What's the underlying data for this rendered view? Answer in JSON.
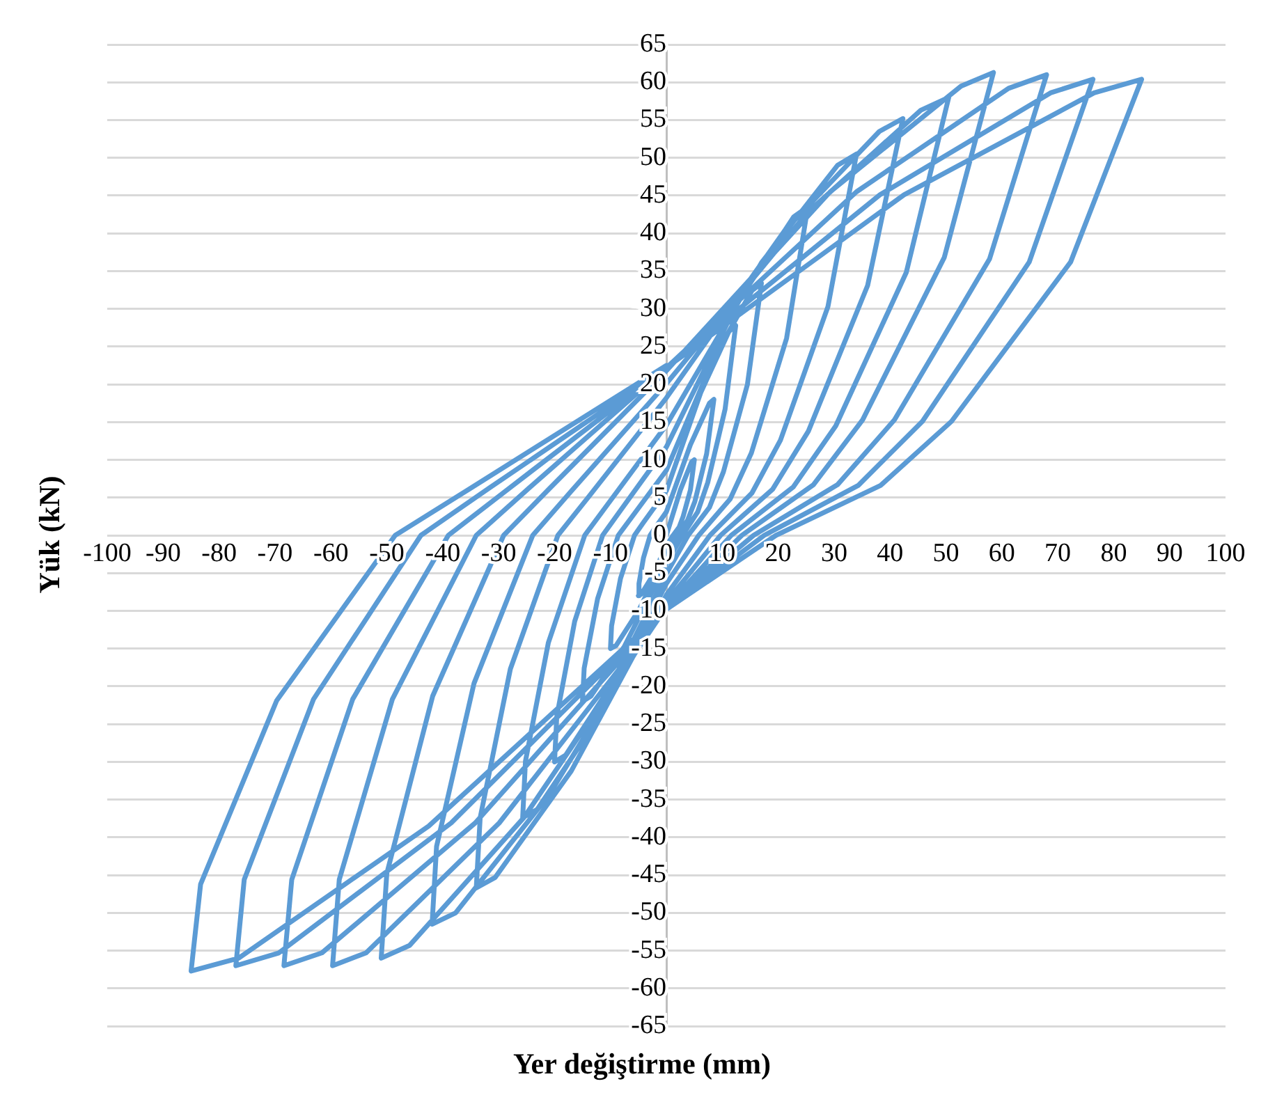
{
  "chart_data": {
    "type": "line",
    "xlabel": "Yer değiştirme (mm)",
    "ylabel": "Yük (kN)",
    "xlim": [
      -100,
      100
    ],
    "ylim": [
      -65,
      65
    ],
    "xticks": [
      -100,
      -90,
      -80,
      -70,
      -60,
      -50,
      -40,
      -30,
      -20,
      -10,
      0,
      10,
      20,
      30,
      40,
      50,
      60,
      70,
      80,
      90,
      100
    ],
    "yticks": [
      -65,
      -60,
      -55,
      -50,
      -45,
      -40,
      -35,
      -30,
      -25,
      -20,
      -15,
      -10,
      -5,
      0,
      5,
      10,
      15,
      20,
      25,
      30,
      35,
      40,
      45,
      50,
      55,
      60,
      65
    ],
    "grid": "y",
    "series": [
      {
        "color": "#5b9bd5",
        "x": [
          0,
          2.5,
          4.5,
          5,
          4.3,
          3,
          2.3,
          1.2,
          0,
          -2.5,
          -4.5,
          -5,
          -4.9,
          -4.1,
          -2.9,
          -2.1,
          0,
          4.3,
          7.7,
          8.5,
          7.2,
          5.1,
          3.8,
          2,
          0,
          -5,
          -9,
          -10,
          -9.8,
          -8.2,
          -5.7,
          -4.1,
          0,
          6.2,
          11.2,
          12.4,
          10.5,
          7.4,
          5.6,
          2.9,
          0,
          -7.5,
          -13.5,
          -15,
          -14.7,
          -12.3,
          -8.6,
          -6.2,
          0,
          8.5,
          15.3,
          17,
          14.5,
          10.2,
          7.7,
          3.9,
          0,
          -10,
          -18,
          -20,
          -19.6,
          -16.4,
          -11.4,
          -8.2,
          0,
          12.7,
          22.8,
          25.3,
          21.5,
          15.2,
          11.4,
          5.8,
          0,
          -12.9,
          -23.1,
          -25.7,
          -25.2,
          -21.1,
          -14.6,
          -10.5,
          0,
          17,
          30.6,
          34,
          28.9,
          20.4,
          15.3,
          7.8,
          0,
          -17,
          -30.6,
          -34,
          -33.3,
          -27.9,
          -19.4,
          -13.9,
          0,
          21.2,
          38.1,
          42.3,
          36,
          25.4,
          19,
          9.7,
          0,
          -21,
          -37.7,
          -41.9,
          -41.1,
          -34.4,
          -23.9,
          -17.2,
          0,
          25.3,
          45.5,
          50.5,
          42.9,
          30.3,
          22.7,
          11.6,
          0,
          -25.5,
          -45.9,
          -51,
          -50,
          -41.8,
          -29.1,
          -20.9,
          0,
          29.3,
          52.7,
          58.5,
          49.7,
          35.1,
          26.3,
          13.5,
          0,
          -29.9,
          -53.7,
          -59.7,
          -58.5,
          -49,
          -34,
          -24.5,
          0,
          34,
          61.2,
          68,
          57.8,
          40.8,
          30.6,
          15.6,
          0,
          -34.2,
          -61.6,
          -68.4,
          -67,
          -56.1,
          -39,
          -28,
          0,
          38.2,
          68.7,
          76.3,
          64.9,
          45.8,
          34.3,
          17.5,
          0,
          -38.5,
          -69.3,
          -77,
          -75.5,
          -63.1,
          -43.9,
          -31.6,
          0,
          42.5,
          76.5,
          85,
          72.3,
          51,
          38.3,
          19.6,
          0,
          -42.5,
          -76.5,
          -85,
          -83.3,
          -69.7,
          -48.5,
          -34.9,
          0
        ],
        "values": [
          0,
          6,
          9.7,
          10,
          6,
          2.5,
          1.1,
          0,
          -1.4,
          -5.4,
          -7.8,
          -8,
          -6.4,
          -3,
          0,
          0.9,
          3.1,
          12,
          17.5,
          18,
          10.8,
          4.5,
          2,
          0,
          -2.6,
          -10,
          -14.6,
          -15,
          -12,
          -5.7,
          0,
          1.7,
          5.9,
          19,
          27,
          27.8,
          16.7,
          7,
          3.1,
          0,
          -3.7,
          -14.7,
          -21.3,
          -22,
          -17.6,
          -8.4,
          0,
          2.4,
          8.6,
          23.5,
          32.4,
          33.4,
          20,
          8.4,
          3.7,
          0,
          -5.1,
          -20,
          -29.1,
          -30,
          -24,
          -11.4,
          0,
          3.3,
          11.7,
          30.8,
          42.2,
          43.5,
          26.1,
          10.9,
          4.8,
          0,
          -6.4,
          -25,
          -36.3,
          -37.4,
          -29.9,
          -14.2,
          0,
          4.1,
          14.6,
          36.1,
          49,
          50.5,
          30.3,
          12.6,
          5.6,
          0,
          -7.9,
          -31.2,
          -45.3,
          -46.7,
          -37.4,
          -17.7,
          0,
          5.1,
          18.2,
          40.4,
          53.5,
          55.2,
          33.1,
          13.8,
          6.1,
          0,
          -8.8,
          -34.4,
          -50,
          -51.5,
          -41.2,
          -19.6,
          0,
          5.7,
          20.1,
          42.8,
          56.3,
          58,
          34.8,
          14.5,
          6.4,
          0,
          -9.5,
          -37.4,
          -54.3,
          -56,
          -44.8,
          -21.3,
          0,
          6.2,
          21.8,
          45.5,
          59.5,
          61.3,
          36.8,
          15.3,
          6.7,
          0,
          -9.7,
          -38.1,
          -55.3,
          -57,
          -45.6,
          -21.7,
          0,
          6.3,
          22.2,
          45.5,
          59.2,
          61,
          36.6,
          15.3,
          6.7,
          0,
          -9.7,
          -38.1,
          -55.3,
          -57,
          -45.6,
          -21.7,
          0,
          6.3,
          22.2,
          45.1,
          58.6,
          60.4,
          36.2,
          15.1,
          6.6,
          0,
          -9.7,
          -38.1,
          -55.3,
          -57,
          -45.6,
          -21.7,
          0,
          6.3,
          22.2,
          45.1,
          58.6,
          60.4,
          36.2,
          15.1,
          6.6,
          0,
          -9.8,
          -38.5,
          -56,
          -57.7,
          -46.2,
          -21.9,
          0,
          6.3,
          22.5
        ]
      }
    ]
  }
}
